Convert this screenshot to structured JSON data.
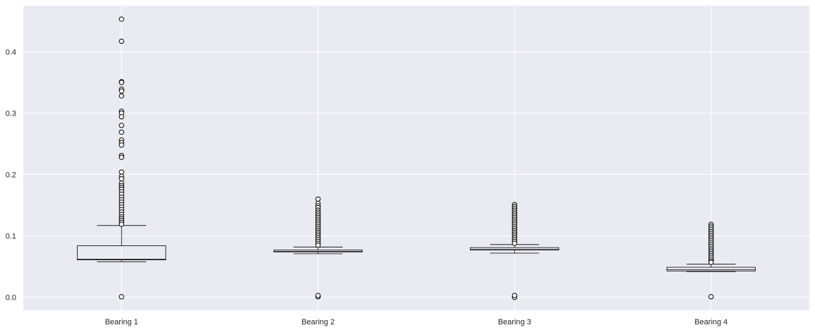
{
  "chart_data": {
    "type": "box",
    "categories": [
      "Bearing 1",
      "Bearing 2",
      "Bearing 3",
      "Bearing 4"
    ],
    "ylim": [
      -0.021,
      0.475
    ],
    "yticks": [
      0.0,
      0.1,
      0.2,
      0.3,
      0.4
    ],
    "ytick_labels": [
      "0.0",
      "0.1",
      "0.2",
      "0.3",
      "0.4"
    ],
    "grid": true,
    "colors": {
      "background": "#eaeaf2",
      "grid": "#ffffff",
      "box": "#000000",
      "flier_face": "#ffffff"
    },
    "boxes": [
      {
        "name": "Bearing 1",
        "whisker_low": 0.058,
        "q1": 0.061,
        "median": 0.062,
        "q3": 0.084,
        "whisker_high": 0.117,
        "outliers_low": [
          0.001
        ],
        "outliers_high": [
          0.453,
          0.417,
          0.351,
          0.35,
          0.339,
          0.336,
          0.328,
          0.303,
          0.3,
          0.294,
          0.28,
          0.269,
          0.256,
          0.252,
          0.248,
          0.231,
          0.228,
          0.204,
          0.197,
          0.193,
          0.186,
          0.182,
          0.179,
          0.176,
          0.172,
          0.168,
          0.163,
          0.159,
          0.155,
          0.151,
          0.147,
          0.143,
          0.139,
          0.135,
          0.131,
          0.128,
          0.125,
          0.122,
          0.119
        ]
      },
      {
        "name": "Bearing 2",
        "whisker_low": 0.071,
        "q1": 0.074,
        "median": 0.075,
        "q3": 0.077,
        "whisker_high": 0.082,
        "outliers_low": [
          0.001,
          0.003
        ],
        "outliers_high": [
          0.16,
          0.153,
          0.149,
          0.146,
          0.142,
          0.139,
          0.136,
          0.133,
          0.13,
          0.127,
          0.124,
          0.121,
          0.118,
          0.115,
          0.112,
          0.109,
          0.106,
          0.103,
          0.1,
          0.097,
          0.094,
          0.091,
          0.088,
          0.085
        ]
      },
      {
        "name": "Bearing 3",
        "whisker_low": 0.072,
        "q1": 0.077,
        "median": 0.078,
        "q3": 0.081,
        "whisker_high": 0.086,
        "outliers_low": [
          0.0,
          0.003
        ],
        "outliers_high": [
          0.151,
          0.148,
          0.145,
          0.142,
          0.139,
          0.136,
          0.133,
          0.13,
          0.127,
          0.124,
          0.121,
          0.118,
          0.115,
          0.112,
          0.109,
          0.106,
          0.103,
          0.1,
          0.097,
          0.094,
          0.091,
          0.088
        ]
      },
      {
        "name": "Bearing 4",
        "whisker_low": 0.042,
        "q1": 0.043,
        "median": 0.045,
        "q3": 0.049,
        "whisker_high": 0.054,
        "outliers_low": [
          0.001
        ],
        "outliers_high": [
          0.119,
          0.116,
          0.113,
          0.11,
          0.107,
          0.104,
          0.101,
          0.098,
          0.095,
          0.092,
          0.089,
          0.086,
          0.083,
          0.08,
          0.077,
          0.074,
          0.071,
          0.068,
          0.065,
          0.062,
          0.059,
          0.057
        ]
      }
    ]
  }
}
